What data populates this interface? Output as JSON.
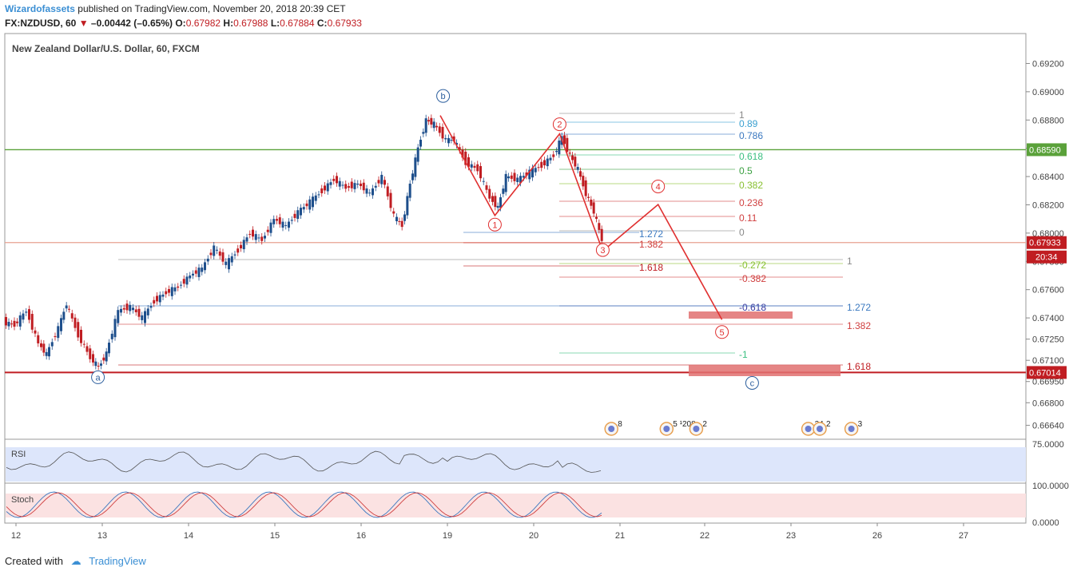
{
  "header": {
    "author": "Wizardofassets",
    "published": "published on TradingView.com, November 20, 2018 20:39 CET",
    "symbol": "FX:NZDUSD, 60",
    "change": "–0.00442 (–0.65%)",
    "open_label": "O:",
    "open": "0.67982",
    "high_label": "H:",
    "high": "0.67988",
    "low_label": "L:",
    "low": "0.67884",
    "close_label": "C:",
    "close": "0.67933"
  },
  "footer": {
    "created_with": "Created with",
    "brand": "TradingView"
  },
  "colors": {
    "up": "#1e4f8c",
    "down": "#c01d22",
    "wave": "#e03030",
    "green_line": "#5aa13a",
    "red_line": "#c01d22"
  },
  "chart_data": {
    "type": "candlestick",
    "title": "New Zealand Dollar/U.S. Dollar, 60, FXCM",
    "y_ticks": [
      "0.69200",
      "0.69000",
      "0.68800",
      "0.68600",
      "0.68400",
      "0.68200",
      "0.68000",
      "0.67800",
      "0.67600",
      "0.67400",
      "0.67250",
      "0.67100",
      "0.66950",
      "0.66800",
      "0.66640"
    ],
    "y_range": [
      0.6657,
      0.6931
    ],
    "x_ticks": [
      "12",
      "13",
      "14",
      "15",
      "16",
      "19",
      "20",
      "21",
      "22",
      "23",
      "26",
      "27"
    ],
    "price_labels": [
      {
        "value": 0.6859,
        "text": "0.68590",
        "color": "#5aa13a"
      },
      {
        "value": 0.67933,
        "text": "0.67933",
        "color": "#c01d22"
      },
      {
        "value": 0.67014,
        "text": "0.67014",
        "color": "#c01d22"
      }
    ],
    "countdown": "20:34",
    "horizontal_lines": [
      {
        "value": 0.6859,
        "color": "#5aa13a"
      },
      {
        "value": 0.67014,
        "color": "#c01d22"
      },
      {
        "value": 0.67933,
        "color": "#e8a090"
      }
    ],
    "wave_labels": [
      {
        "text": "b",
        "x": "18.85",
        "y": 0.6897,
        "color": "#2d5f9e"
      },
      {
        "text": "a",
        "x": "12.95",
        "y": 0.6698,
        "color": "#2d5f9e"
      },
      {
        "text": "c",
        "x": "22.55",
        "y": 0.6694,
        "color": "#2d5f9e"
      },
      {
        "text": "1",
        "x": "19.55",
        "y": 0.6806,
        "color": "#e03030"
      },
      {
        "text": "2",
        "x": "20.3",
        "y": 0.6877,
        "color": "#e03030"
      },
      {
        "text": "3",
        "x": "20.8",
        "y": 0.6788,
        "color": "#e03030"
      },
      {
        "text": "4",
        "x": "21.45",
        "y": 0.6833,
        "color": "#e03030"
      },
      {
        "text": "5",
        "x": "22.2",
        "y": 0.673,
        "color": "#e03030"
      }
    ],
    "wave_path": [
      [
        "18.75",
        0.68832
      ],
      [
        "19.55",
        0.68125
      ],
      [
        "20.3",
        0.68702
      ],
      [
        "20.8",
        0.67873
      ],
      [
        "21.45",
        0.68202
      ],
      [
        "22.2",
        0.67388
      ]
    ],
    "fib_levels": [
      {
        "text": "1",
        "y": 0.6867,
        "color": "#888888"
      },
      {
        "text": "0.89",
        "y": 0.68575,
        "color": "#3aa0d0"
      },
      {
        "text": "0.786",
        "y": 0.68428,
        "color": "#3a78c0"
      },
      {
        "text": "0.618",
        "y": 0.68285,
        "color": "#3abf80"
      },
      {
        "text": "0.5",
        "y": 0.68142,
        "color": "#3aa040"
      },
      {
        "text": "0.382",
        "y": 0.67998,
        "color": "#88c030"
      },
      {
        "text": "0.236",
        "y": 0.67855,
        "color": "#d04040"
      },
      {
        "text": "0.11",
        "y": 0.67713,
        "color": "#d04040"
      },
      {
        "text": "0",
        "y": 0.6757,
        "color": "#888888"
      },
      {
        "text": "1.272",
        "y": 0.67426,
        "color": "#3a78c0"
      },
      {
        "text": "1.382",
        "y": 0.67283,
        "color": "#d04040"
      },
      {
        "text": "1.618",
        "y": 0.6714,
        "color": "#c01d22"
      },
      {
        "text": "-0.272",
        "y": 0.67,
        "color": "#88c030"
      },
      {
        "text": "-0.382",
        "y": 0.66855,
        "color": "#d04040"
      },
      {
        "text": "-0.618",
        "y": 0.66712,
        "color": "#3a3aa0"
      },
      {
        "text": "1",
        "y": 0.66568,
        "color": "#888888"
      },
      {
        "text": "1.272",
        "y": 0.66425,
        "color": "#3a78c0"
      },
      {
        "text": "1.382",
        "y": 0.6628,
        "color": "#d04040"
      },
      {
        "text": "-1",
        "y": 0.66137,
        "color": "#3abf80"
      },
      {
        "text": "1.618",
        "y": 0.65995,
        "color": "#c01d22"
      }
    ],
    "target_boxes": [
      {
        "y_top": 0.674,
        "y_bottom": 0.67375
      },
      {
        "y_top": 0.67055,
        "y_bottom": 0.6697
      }
    ],
    "events": [
      {
        "x": "20.9",
        "text": "8"
      },
      {
        "x": "21.55",
        "text": "5 ¹208"
      },
      {
        "x": "21.9",
        "text": "2"
      },
      {
        "x": "23.6",
        "text": "24"
      },
      {
        "x": "24.0",
        "text": "2"
      },
      {
        "x": "25.1",
        "text": "3"
      }
    ],
    "rsi": {
      "label": "RSI",
      "ticks": [
        "75.0000"
      ]
    },
    "stoch": {
      "label": "Stoch",
      "ticks": [
        "100.0000",
        "0.0000"
      ]
    }
  }
}
